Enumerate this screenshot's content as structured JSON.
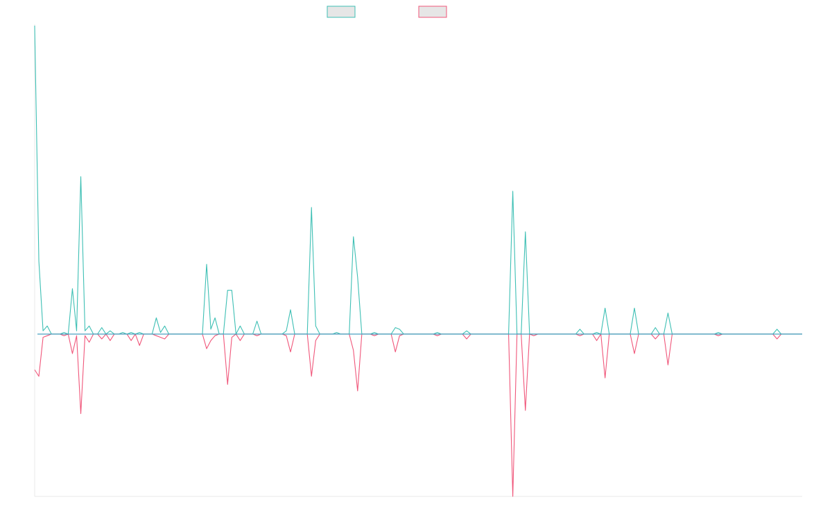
{
  "chart_data": {
    "type": "line",
    "title": "",
    "xlabel": "",
    "ylabel": "",
    "grid": false,
    "legend_position": "top-center",
    "x_count": 184,
    "ylim": [
      -1.0,
      1.9
    ],
    "zero_line_color": "#4aa0c0",
    "series": [
      {
        "name": "",
        "color": "#3dbfb4",
        "legend_fill": "#e6e6e6",
        "points": [
          [
            0,
            1.9
          ],
          [
            1,
            0.45
          ],
          [
            2,
            0.02
          ],
          [
            3,
            0.05
          ],
          [
            4,
            0.0
          ],
          [
            6,
            0.0
          ],
          [
            7,
            0.01
          ],
          [
            8,
            0.0
          ],
          [
            9,
            0.28
          ],
          [
            10,
            0.02
          ],
          [
            11,
            0.97
          ],
          [
            12,
            0.02
          ],
          [
            13,
            0.05
          ],
          [
            14,
            0.0
          ],
          [
            15,
            0.0
          ],
          [
            16,
            0.04
          ],
          [
            17,
            0.0
          ],
          [
            18,
            0.02
          ],
          [
            19,
            0.0
          ],
          [
            20,
            0.0
          ],
          [
            21,
            0.01
          ],
          [
            22,
            0.0
          ],
          [
            23,
            0.01
          ],
          [
            24,
            0.0
          ],
          [
            25,
            0.01
          ],
          [
            26,
            0.0
          ],
          [
            27,
            0.0
          ],
          [
            28,
            0.0
          ],
          [
            29,
            0.1
          ],
          [
            30,
            0.01
          ],
          [
            31,
            0.05
          ],
          [
            32,
            0.0
          ],
          [
            33,
            0.0
          ],
          [
            40,
            0.0
          ],
          [
            41,
            0.43
          ],
          [
            42,
            0.03
          ],
          [
            43,
            0.1
          ],
          [
            44,
            0.0
          ],
          [
            45,
            0.0
          ],
          [
            46,
            0.27
          ],
          [
            47,
            0.27
          ],
          [
            48,
            0.0
          ],
          [
            49,
            0.05
          ],
          [
            50,
            0.0
          ],
          [
            52,
            0.0
          ],
          [
            53,
            0.08
          ],
          [
            54,
            0.0
          ],
          [
            59,
            0.0
          ],
          [
            60,
            0.02
          ],
          [
            61,
            0.15
          ],
          [
            62,
            0.0
          ],
          [
            63,
            0.0
          ],
          [
            64,
            0.0
          ],
          [
            65,
            0.0
          ],
          [
            66,
            0.78
          ],
          [
            67,
            0.05
          ],
          [
            68,
            0.0
          ],
          [
            71,
            0.0
          ],
          [
            72,
            0.01
          ],
          [
            73,
            0.0
          ],
          [
            75,
            0.0
          ],
          [
            76,
            0.6
          ],
          [
            77,
            0.35
          ],
          [
            78,
            0.0
          ],
          [
            80,
            0.0
          ],
          [
            81,
            0.01
          ],
          [
            82,
            0.0
          ],
          [
            85,
            0.0
          ],
          [
            86,
            0.04
          ],
          [
            87,
            0.03
          ],
          [
            88,
            0.0
          ],
          [
            95,
            0.0
          ],
          [
            96,
            0.01
          ],
          [
            97,
            0.0
          ],
          [
            102,
            0.0
          ],
          [
            103,
            0.02
          ],
          [
            104,
            0.0
          ],
          [
            106,
            0.0
          ],
          [
            107,
            0.0
          ],
          [
            113,
            0.0
          ],
          [
            114,
            0.88
          ],
          [
            115,
            0.0
          ],
          [
            116,
            0.0
          ],
          [
            117,
            0.63
          ],
          [
            118,
            0.0
          ],
          [
            119,
            0.0
          ],
          [
            129,
            0.0
          ],
          [
            130,
            0.03
          ],
          [
            131,
            0.0
          ],
          [
            133,
            0.0
          ],
          [
            134,
            0.01
          ],
          [
            135,
            0.0
          ],
          [
            136,
            0.16
          ],
          [
            137,
            0.0
          ],
          [
            142,
            0.0
          ],
          [
            143,
            0.16
          ],
          [
            144,
            0.0
          ],
          [
            147,
            0.0
          ],
          [
            148,
            0.04
          ],
          [
            149,
            0.0
          ],
          [
            150,
            0.0
          ],
          [
            151,
            0.13
          ],
          [
            152,
            0.0
          ],
          [
            162,
            0.0
          ],
          [
            163,
            0.01
          ],
          [
            164,
            0.0
          ],
          [
            176,
            0.0
          ],
          [
            177,
            0.03
          ],
          [
            178,
            0.0
          ],
          [
            183,
            0.0
          ]
        ]
      },
      {
        "name": "",
        "color": "#f0567a",
        "legend_fill": "#e6e6e6",
        "points": [
          [
            0,
            -0.22
          ],
          [
            1,
            -0.26
          ],
          [
            2,
            -0.02
          ],
          [
            3,
            -0.01
          ],
          [
            4,
            0.0
          ],
          [
            6,
            0.0
          ],
          [
            7,
            -0.01
          ],
          [
            8,
            0.0
          ],
          [
            9,
            -0.12
          ],
          [
            10,
            -0.01
          ],
          [
            11,
            -0.49
          ],
          [
            12,
            -0.01
          ],
          [
            13,
            -0.05
          ],
          [
            14,
            0.0
          ],
          [
            15,
            0.0
          ],
          [
            16,
            -0.03
          ],
          [
            17,
            0.0
          ],
          [
            18,
            -0.04
          ],
          [
            19,
            0.0
          ],
          [
            20,
            0.0
          ],
          [
            21,
            0.0
          ],
          [
            22,
            0.0
          ],
          [
            23,
            -0.04
          ],
          [
            24,
            0.0
          ],
          [
            25,
            -0.07
          ],
          [
            26,
            0.0
          ],
          [
            27,
            0.0
          ],
          [
            28,
            0.0
          ],
          [
            29,
            -0.01
          ],
          [
            30,
            -0.02
          ],
          [
            31,
            -0.03
          ],
          [
            32,
            0.0
          ],
          [
            33,
            0.0
          ],
          [
            40,
            0.0
          ],
          [
            41,
            -0.09
          ],
          [
            42,
            -0.04
          ],
          [
            43,
            -0.01
          ],
          [
            44,
            0.0
          ],
          [
            45,
            0.0
          ],
          [
            46,
            -0.31
          ],
          [
            47,
            -0.02
          ],
          [
            48,
            0.0
          ],
          [
            49,
            -0.04
          ],
          [
            50,
            0.0
          ],
          [
            52,
            0.0
          ],
          [
            53,
            -0.01
          ],
          [
            54,
            0.0
          ],
          [
            59,
            0.0
          ],
          [
            60,
            -0.01
          ],
          [
            61,
            -0.11
          ],
          [
            62,
            0.0
          ],
          [
            63,
            0.0
          ],
          [
            64,
            0.0
          ],
          [
            65,
            0.0
          ],
          [
            66,
            -0.26
          ],
          [
            67,
            -0.04
          ],
          [
            68,
            0.0
          ],
          [
            71,
            0.0
          ],
          [
            72,
            0.0
          ],
          [
            73,
            0.0
          ],
          [
            75,
            0.0
          ],
          [
            76,
            -0.1
          ],
          [
            77,
            -0.35
          ],
          [
            78,
            0.0
          ],
          [
            80,
            0.0
          ],
          [
            81,
            -0.01
          ],
          [
            82,
            0.0
          ],
          [
            85,
            0.0
          ],
          [
            86,
            -0.11
          ],
          [
            87,
            -0.01
          ],
          [
            88,
            0.0
          ],
          [
            95,
            0.0
          ],
          [
            96,
            -0.01
          ],
          [
            97,
            0.0
          ],
          [
            102,
            0.0
          ],
          [
            103,
            -0.03
          ],
          [
            104,
            0.0
          ],
          [
            106,
            0.0
          ],
          [
            107,
            0.0
          ],
          [
            113,
            0.0
          ],
          [
            114,
            -1.0
          ],
          [
            115,
            0.0
          ],
          [
            116,
            0.0
          ],
          [
            117,
            -0.47
          ],
          [
            118,
            0.0
          ],
          [
            119,
            -0.01
          ],
          [
            129,
            0.0
          ],
          [
            130,
            -0.01
          ],
          [
            131,
            0.0
          ],
          [
            133,
            0.0
          ],
          [
            134,
            -0.04
          ],
          [
            135,
            0.0
          ],
          [
            136,
            -0.27
          ],
          [
            137,
            0.0
          ],
          [
            142,
            0.0
          ],
          [
            143,
            -0.12
          ],
          [
            144,
            0.0
          ],
          [
            147,
            0.0
          ],
          [
            148,
            -0.03
          ],
          [
            149,
            0.0
          ],
          [
            150,
            0.0
          ],
          [
            151,
            -0.19
          ],
          [
            152,
            0.0
          ],
          [
            162,
            0.0
          ],
          [
            163,
            -0.01
          ],
          [
            164,
            0.0
          ],
          [
            176,
            0.0
          ],
          [
            177,
            -0.03
          ],
          [
            178,
            0.0
          ],
          [
            183,
            0.0
          ]
        ]
      }
    ]
  }
}
